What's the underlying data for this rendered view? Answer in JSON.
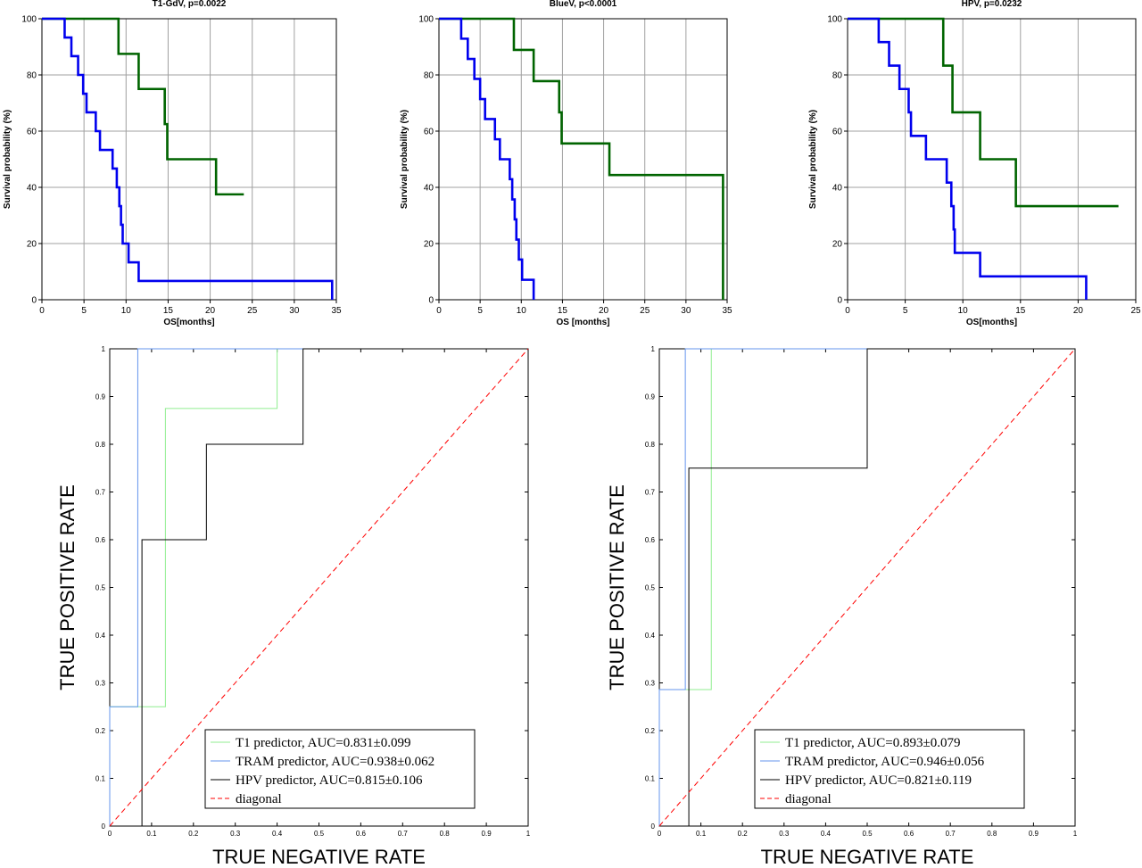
{
  "colors": {
    "km_high": "#006400",
    "km_low": "#0000ee",
    "roc_t1": "#90ee90",
    "roc_tram": "#6495ed",
    "roc_hpv": "#000000",
    "roc_diagonal": "#ff0000",
    "grid": "#a0a0a0"
  },
  "chart_data": [
    {
      "type": "line",
      "subtype": "kaplan-meier",
      "title": "T1-GdV, p=0.0022",
      "xlabel": "OS[months]",
      "ylabel": "Survival probability (%)",
      "xlim": [
        0,
        35
      ],
      "ylim": [
        0,
        100
      ],
      "xticks": [
        "0",
        "5",
        "10",
        "15",
        "20",
        "25",
        "30",
        "35"
      ],
      "yticks": [
        "0",
        "20",
        "40",
        "60",
        "80",
        "100"
      ],
      "grid": true,
      "series": [
        {
          "color_key": "km_high",
          "x": [
            0,
            9.1,
            11.5,
            14.6,
            14.9,
            20.7,
            24
          ],
          "y": [
            100,
            87.5,
            75,
            62.5,
            50,
            37.5,
            37.5
          ]
        },
        {
          "color_key": "km_low",
          "x": [
            0,
            2.7,
            3.5,
            4.3,
            4.9,
            5.3,
            5.5,
            6.4,
            6.9,
            8.4,
            8.9,
            9.2,
            9.4,
            9.6,
            10.3,
            11.5,
            34.5
          ],
          "y": [
            100,
            93.3,
            86.7,
            80,
            73.3,
            66.7,
            66.7,
            60,
            53.3,
            46.7,
            40,
            33.3,
            26.7,
            20,
            13.3,
            6.7,
            0
          ]
        }
      ]
    },
    {
      "type": "line",
      "subtype": "kaplan-meier",
      "title": "BlueV, p<0.0001",
      "xlabel": "OS [months]",
      "ylabel": "Survival probability (%)",
      "xlim": [
        0,
        35
      ],
      "ylim": [
        0,
        100
      ],
      "xticks": [
        "0",
        "5",
        "10",
        "15",
        "20",
        "25",
        "30",
        "35"
      ],
      "yticks": [
        "0",
        "20",
        "40",
        "60",
        "80",
        "100"
      ],
      "grid": true,
      "series": [
        {
          "color_key": "km_high",
          "x": [
            0,
            9.1,
            11.5,
            14.6,
            14.9,
            20.7,
            34.5
          ],
          "y": [
            100,
            88.9,
            77.8,
            66.7,
            55.6,
            44.4,
            0
          ]
        },
        {
          "color_key": "km_low",
          "x": [
            0,
            2.7,
            3.5,
            4.3,
            5.0,
            5.6,
            6.8,
            7.4,
            8.6,
            8.9,
            9.2,
            9.4,
            9.7,
            10.1,
            11.5
          ],
          "y": [
            100,
            92.9,
            85.7,
            78.6,
            71.4,
            64.3,
            57.1,
            50,
            42.9,
            35.7,
            28.6,
            21.4,
            14.3,
            7.1,
            0
          ]
        }
      ]
    },
    {
      "type": "line",
      "subtype": "kaplan-meier",
      "title": "HPV, p=0.0232",
      "xlabel": "OS[months]",
      "ylabel": "Survival probability (%)",
      "xlim": [
        0,
        25
      ],
      "ylim": [
        0,
        100
      ],
      "xticks": [
        "0",
        "5",
        "10",
        "15",
        "20",
        "25"
      ],
      "yticks": [
        "0",
        "20",
        "40",
        "60",
        "80",
        "100"
      ],
      "grid": true,
      "series": [
        {
          "color_key": "km_high",
          "x": [
            0,
            8.3,
            9.1,
            11.5,
            14.6,
            23.5
          ],
          "y": [
            100,
            83.3,
            66.7,
            50,
            33.3,
            33.3
          ]
        },
        {
          "color_key": "km_low",
          "x": [
            0,
            2.7,
            3.6,
            4.5,
            5.3,
            5.5,
            6.8,
            8.6,
            9.0,
            9.2,
            9.3,
            11.5,
            20.7
          ],
          "y": [
            100,
            91.7,
            83.3,
            75,
            66.7,
            58.3,
            50,
            41.7,
            33.3,
            25,
            16.7,
            8.3,
            0
          ]
        }
      ]
    },
    {
      "type": "line",
      "subtype": "roc",
      "xlabel": "TRUE NEGATIVE RATE",
      "ylabel": "TRUE POSITIVE RATE",
      "xlim": [
        0,
        1
      ],
      "ylim": [
        0,
        1
      ],
      "xticks": [
        "0",
        "0.1",
        "0.2",
        "0.3",
        "0.4",
        "0.5",
        "0.6",
        "0.7",
        "0.8",
        "0.9",
        "1"
      ],
      "yticks": [
        "0",
        "0.1",
        "0.2",
        "0.3",
        "0.4",
        "0.5",
        "0.6",
        "0.7",
        "0.8",
        "0.9",
        "1"
      ],
      "legend_position": "bottom-right",
      "series": [
        {
          "name": "T1 predictor, AUC=0.831±0.099",
          "color_key": "roc_t1",
          "x": [
            0,
            0,
            0.133,
            0.133,
            0.4,
            0.4,
            1
          ],
          "y": [
            0,
            0.25,
            0.25,
            0.875,
            0.875,
            1,
            1
          ]
        },
        {
          "name": "TRAM predictor, AUC=0.938±0.062",
          "color_key": "roc_tram",
          "x": [
            0,
            0,
            0.067,
            0.067,
            1
          ],
          "y": [
            0,
            0.25,
            0.25,
            1,
            1
          ]
        },
        {
          "name": "HPV predictor, AUC=0.815±0.106",
          "color_key": "roc_hpv",
          "x": [
            0.077,
            0.077,
            0.231,
            0.231,
            0.462,
            0.462,
            1
          ],
          "y": [
            0,
            0.6,
            0.6,
            0.8,
            0.8,
            1,
            1
          ]
        },
        {
          "name": "diagonal",
          "color_key": "roc_diagonal",
          "dashed": true,
          "x": [
            0,
            1
          ],
          "y": [
            0,
            1
          ]
        }
      ]
    },
    {
      "type": "line",
      "subtype": "roc",
      "xlabel": "TRUE NEGATIVE RATE",
      "ylabel": "TRUE POSITIVE RATE",
      "xlim": [
        0,
        1
      ],
      "ylim": [
        0,
        1
      ],
      "xticks": [
        "0",
        "0.1",
        "0.2",
        "0.3",
        "0.4",
        "0.5",
        "0.6",
        "0.7",
        "0.8",
        "0.9",
        "1"
      ],
      "yticks": [
        "0",
        "0.1",
        "0.2",
        "0.3",
        "0.4",
        "0.5",
        "0.6",
        "0.7",
        "0.8",
        "0.9",
        "1"
      ],
      "legend_position": "bottom-right",
      "series": [
        {
          "name": "T1 predictor, AUC=0.893±0.079",
          "color_key": "roc_t1",
          "x": [
            0,
            0,
            0.125,
            0.125,
            1
          ],
          "y": [
            0,
            0.286,
            0.286,
            1,
            1
          ]
        },
        {
          "name": "TRAM predictor, AUC=0.946±0.056",
          "color_key": "roc_tram",
          "x": [
            0,
            0,
            0.0625,
            0.0625,
            1
          ],
          "y": [
            0,
            0.286,
            0.286,
            1,
            1
          ]
        },
        {
          "name": "HPV predictor, AUC=0.821±0.119",
          "color_key": "roc_hpv",
          "x": [
            0.071,
            0.071,
            0.5,
            0.5,
            1
          ],
          "y": [
            0,
            0.75,
            0.75,
            1,
            1
          ]
        },
        {
          "name": "diagonal",
          "color_key": "roc_diagonal",
          "dashed": true,
          "x": [
            0,
            1
          ],
          "y": [
            0,
            1
          ]
        }
      ]
    }
  ]
}
